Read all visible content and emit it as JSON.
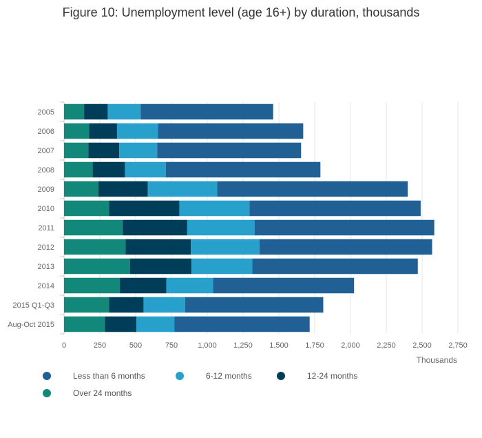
{
  "chart_data": {
    "type": "bar",
    "orientation": "horizontal",
    "stacked": true,
    "title": "Figure 10: Unemployment level (age 16+) by duration, thousands",
    "xlabel": "Thousands",
    "ylabel": "",
    "xlim": [
      0,
      2750
    ],
    "xticks": [
      0,
      250,
      500,
      750,
      1000,
      1250,
      1500,
      1750,
      2000,
      2250,
      2500,
      2750
    ],
    "xtick_labels": [
      "0",
      "250",
      "500",
      "750",
      "1,000",
      "1,250",
      "1,500",
      "1,750",
      "2,000",
      "2,250",
      "2,500",
      "2,750"
    ],
    "grid": true,
    "legend_position": "bottom",
    "categories": [
      "2005",
      "2006",
      "2007",
      "2008",
      "2009",
      "2010",
      "2011",
      "2012",
      "2013",
      "2014",
      "2015 Q1-Q3",
      "Aug-Oct 2015"
    ],
    "series": [
      {
        "name": "Over 24 months",
        "color": "#12887a",
        "values": [
          140,
          175,
          170,
          200,
          240,
          315,
          410,
          430,
          460,
          390,
          315,
          285
        ]
      },
      {
        "name": "12-24 months",
        "color": "#003d59",
        "values": [
          165,
          195,
          215,
          225,
          345,
          490,
          450,
          455,
          430,
          325,
          240,
          220
        ]
      },
      {
        "name": "6-12 months",
        "color": "#27a0cc",
        "values": [
          230,
          285,
          265,
          285,
          485,
          490,
          470,
          480,
          425,
          325,
          290,
          265
        ]
      },
      {
        "name": "Less than 6 months",
        "color": "#206095",
        "values": [
          925,
          1015,
          1005,
          1080,
          1330,
          1195,
          1255,
          1205,
          1155,
          985,
          965,
          945
        ]
      }
    ],
    "legend_order": [
      "Less than 6 months",
      "6-12 months",
      "12-24 months",
      "Over 24 months"
    ]
  }
}
